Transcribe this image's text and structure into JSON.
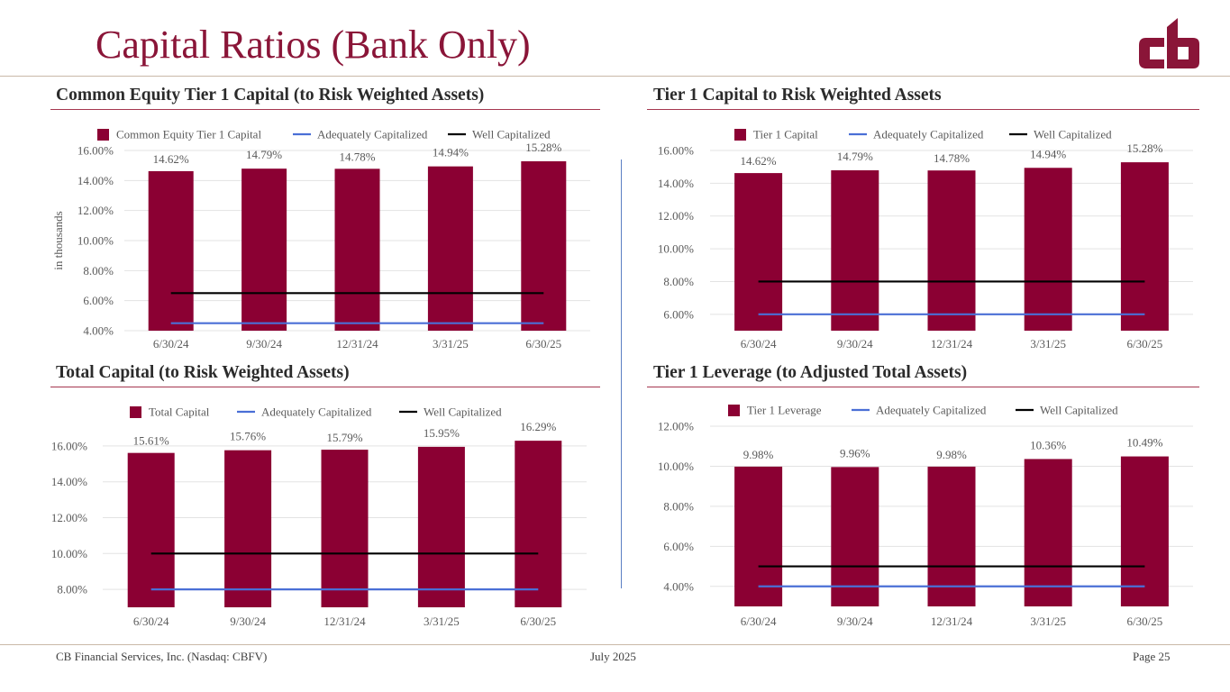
{
  "header": {
    "title": "Capital Ratios (Bank Only)",
    "logo_text": "cb"
  },
  "colors": {
    "brand": "#8a1538",
    "bar": "#8b0033",
    "adequate_line": "#4a6fd6",
    "well_line": "#000000",
    "grid": "#e3e3e3"
  },
  "panels": [
    {
      "title": "Common Equity Tier 1 Capital (to Risk Weighted Assets)"
    },
    {
      "title": "Tier 1 Capital to Risk Weighted Assets"
    },
    {
      "title": "Total Capital (to Risk Weighted Assets)"
    },
    {
      "title": "Tier 1 Leverage (to Adjusted Total Assets)"
    }
  ],
  "chart_data": [
    {
      "type": "bar",
      "title": "Common Equity Tier 1 Capital (to Risk Weighted Assets)",
      "categories": [
        "6/30/24",
        "9/30/24",
        "12/31/24",
        "3/31/25",
        "6/30/25"
      ],
      "series": [
        {
          "name": "Common Equity Tier 1 Capital",
          "kind": "bar",
          "values": [
            14.62,
            14.79,
            14.78,
            14.94,
            15.28
          ],
          "labels": [
            "14.62%",
            "14.79%",
            "14.78%",
            "14.94%",
            "15.28%"
          ]
        },
        {
          "name": "Adequately Capitalized",
          "kind": "line",
          "values": [
            4.5,
            4.5,
            4.5,
            4.5,
            4.5
          ]
        },
        {
          "name": "Well Capitalized",
          "kind": "line",
          "values": [
            6.5,
            6.5,
            6.5,
            6.5,
            6.5
          ]
        }
      ],
      "ylim": [
        4,
        16
      ],
      "yticks": [
        4,
        6,
        8,
        10,
        12,
        14,
        16
      ],
      "ytick_labels": [
        "4.00%",
        "6.00%",
        "8.00%",
        "10.00%",
        "12.00%",
        "14.00%",
        "16.00%"
      ],
      "xlabel": "",
      "ylabel": "in thousands",
      "legend": "top"
    },
    {
      "type": "bar",
      "title": "Tier 1 Capital to Risk Weighted Assets",
      "categories": [
        "6/30/24",
        "9/30/24",
        "12/31/24",
        "3/31/25",
        "6/30/25"
      ],
      "series": [
        {
          "name": "Tier 1 Capital",
          "kind": "bar",
          "values": [
            14.62,
            14.79,
            14.78,
            14.94,
            15.28
          ],
          "labels": [
            "14.62%",
            "14.79%",
            "14.78%",
            "14.94%",
            "15.28%"
          ]
        },
        {
          "name": "Adequately Capitalized",
          "kind": "line",
          "values": [
            6,
            6,
            6,
            6,
            6
          ]
        },
        {
          "name": "Well Capitalized",
          "kind": "line",
          "values": [
            8,
            8,
            8,
            8,
            8
          ]
        }
      ],
      "ylim": [
        5,
        16
      ],
      "yticks": [
        6,
        8,
        10,
        12,
        14,
        16
      ],
      "ytick_labels": [
        "6.00%",
        "8.00%",
        "10.00%",
        "12.00%",
        "14.00%",
        "16.00%"
      ],
      "xlabel": "",
      "ylabel": "",
      "legend": "top"
    },
    {
      "type": "bar",
      "title": "Total Capital (to Risk Weighted Assets)",
      "categories": [
        "6/30/24",
        "9/30/24",
        "12/31/24",
        "3/31/25",
        "6/30/25"
      ],
      "series": [
        {
          "name": "Total Capital",
          "kind": "bar",
          "values": [
            15.61,
            15.76,
            15.79,
            15.95,
            16.29
          ],
          "labels": [
            "15.61%",
            "15.76%",
            "15.79%",
            "15.95%",
            "16.29%"
          ]
        },
        {
          "name": "Adequately Capitalized",
          "kind": "line",
          "values": [
            8,
            8,
            8,
            8,
            8
          ]
        },
        {
          "name": "Well Capitalized",
          "kind": "line",
          "values": [
            10,
            10,
            10,
            10,
            10
          ]
        }
      ],
      "ylim": [
        7,
        17
      ],
      "yticks": [
        8,
        10,
        12,
        14,
        16
      ],
      "ytick_labels": [
        "8.00%",
        "10.00%",
        "12.00%",
        "14.00%",
        "16.00%"
      ],
      "xlabel": "",
      "ylabel": "",
      "legend": "top"
    },
    {
      "type": "bar",
      "title": "Tier 1 Leverage (to Adjusted Total Assets)",
      "categories": [
        "6/30/24",
        "9/30/24",
        "12/31/24",
        "3/31/25",
        "6/30/25"
      ],
      "series": [
        {
          "name": "Tier 1 Leverage",
          "kind": "bar",
          "values": [
            9.98,
            9.96,
            9.98,
            10.36,
            10.49
          ],
          "labels": [
            "9.98%",
            "9.96%",
            "9.98%",
            "10.36%",
            "10.49%"
          ]
        },
        {
          "name": "Adequately Capitalized",
          "kind": "line",
          "values": [
            4,
            4,
            4,
            4,
            4
          ]
        },
        {
          "name": "Well Capitalized",
          "kind": "line",
          "values": [
            5,
            5,
            5,
            5,
            5
          ]
        }
      ],
      "ylim": [
        3,
        12
      ],
      "yticks": [
        4,
        6,
        8,
        10,
        12
      ],
      "ytick_labels": [
        "4.00%",
        "6.00%",
        "8.00%",
        "10.00%",
        "12.00%"
      ],
      "xlabel": "",
      "ylabel": "",
      "legend": "top"
    }
  ],
  "footer": {
    "company": "CB Financial Services, Inc. (Nasdaq: CBFV)",
    "date": "July 2025",
    "page": "Page 25"
  }
}
